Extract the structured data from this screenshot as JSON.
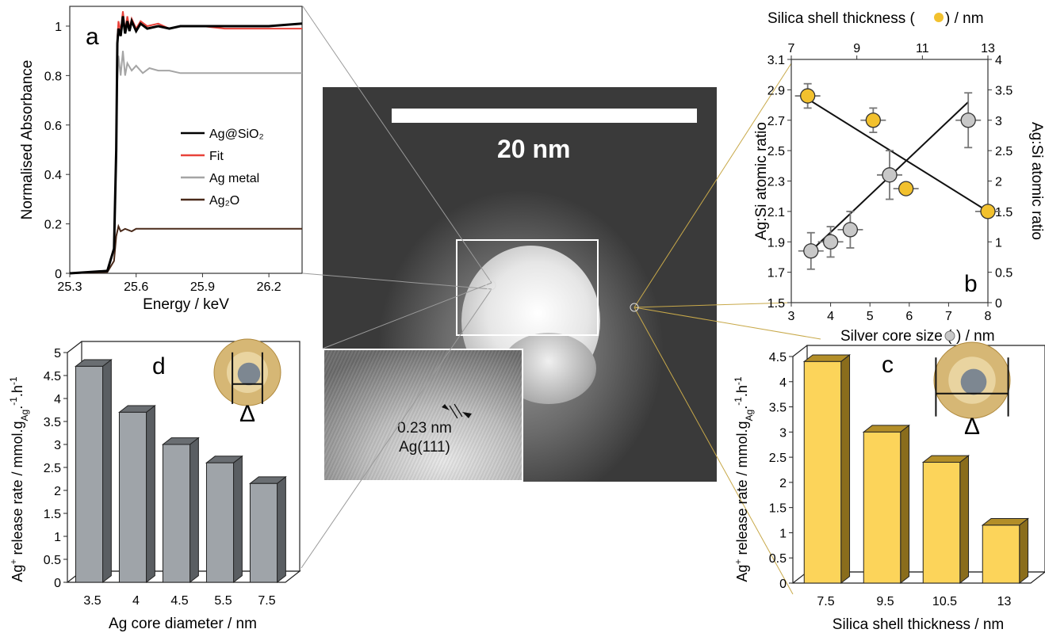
{
  "colors": {
    "ag_sio2": "#000000",
    "fit": "#e8423a",
    "ag_metal": "#a5a5a5",
    "ag2o": "#4a2a1a",
    "core_marker": "#c8c8c8",
    "shell_marker": "#f2c12e",
    "bar_gray": "#9fa4a9",
    "bar_yellow": "#fcd45a"
  },
  "micrograph": {
    "scale_label": "20 nm",
    "inset_spacing": "0.23 nm",
    "inset_plane": "Ag(111)"
  },
  "chart_data": [
    {
      "id": "a",
      "type": "line",
      "panel_label": "a",
      "xlabel": "Energy / keV",
      "ylabel": "Normalised Absorbance",
      "xlim": [
        25.3,
        26.35
      ],
      "ylim": [
        0,
        1.08
      ],
      "xticks": [
        "25.3",
        "25.6",
        "25.9",
        "26.2"
      ],
      "yticks": [
        "0",
        "0.2",
        "0.4",
        "0.6",
        "0.8",
        "1"
      ],
      "legend_position": "center-right",
      "series": [
        {
          "name": "Ag@SiO₂",
          "x": [
            25.3,
            25.47,
            25.5,
            25.51,
            25.515,
            25.52,
            25.53,
            25.54,
            25.55,
            25.56,
            25.57,
            25.58,
            25.6,
            25.62,
            25.65,
            25.7,
            25.75,
            25.8,
            25.9,
            26.0,
            26.1,
            26.2,
            26.35
          ],
          "y": [
            0,
            0.01,
            0.1,
            0.5,
            0.93,
            0.99,
            0.96,
            1.04,
            0.97,
            1.02,
            0.98,
            1.02,
            0.98,
            1.01,
            0.99,
            1.0,
            0.99,
            1.0,
            1.0,
            1.0,
            1.0,
            1.0,
            1.01
          ]
        },
        {
          "name": "Fit",
          "x": [
            25.3,
            25.47,
            25.5,
            25.51,
            25.515,
            25.52,
            25.53,
            25.54,
            25.55,
            25.56,
            25.57,
            25.58,
            25.6,
            25.62,
            25.65,
            25.7,
            25.75,
            25.8,
            25.9,
            26.0,
            26.1,
            26.2,
            26.35
          ],
          "y": [
            0,
            0.01,
            0.1,
            0.5,
            0.95,
            1.02,
            0.98,
            1.06,
            0.98,
            1.04,
            0.99,
            1.03,
            0.99,
            1.02,
            1.0,
            1.01,
            0.99,
            1.0,
            1.0,
            0.99,
            0.99,
            0.99,
            0.99
          ]
        },
        {
          "name": "Ag metal",
          "x": [
            25.3,
            25.47,
            25.5,
            25.51,
            25.515,
            25.52,
            25.53,
            25.54,
            25.55,
            25.56,
            25.58,
            25.6,
            25.63,
            25.66,
            25.7,
            25.75,
            25.8,
            25.9,
            26.0,
            26.1,
            26.2,
            26.35
          ],
          "y": [
            0,
            0.01,
            0.1,
            0.5,
            0.77,
            0.88,
            0.8,
            0.9,
            0.8,
            0.85,
            0.82,
            0.84,
            0.81,
            0.83,
            0.82,
            0.82,
            0.81,
            0.81,
            0.81,
            0.81,
            0.81,
            0.81
          ]
        },
        {
          "name": "Ag₂O",
          "x": [
            25.3,
            25.47,
            25.5,
            25.51,
            25.52,
            25.53,
            25.55,
            25.58,
            25.6,
            25.65,
            25.7,
            25.8,
            25.9,
            26.0,
            26.2,
            26.35
          ],
          "y": [
            0,
            0.005,
            0.05,
            0.15,
            0.19,
            0.17,
            0.18,
            0.17,
            0.18,
            0.18,
            0.18,
            0.18,
            0.18,
            0.18,
            0.18,
            0.18
          ]
        }
      ]
    },
    {
      "id": "b",
      "type": "scatter",
      "panel_label": "b",
      "xlabel": "Silver core size (",
      "xlabel_suffix": ") / nm",
      "x2label": "Silica shell thickness (",
      "x2label_suffix": ") / nm",
      "ylabel": "Ag:Si atomic ratio",
      "y2label": "Ag:Si atomic ratio",
      "xlim": [
        3,
        8
      ],
      "x2lim": [
        7,
        13
      ],
      "ylim": [
        1.5,
        3.1
      ],
      "y2lim": [
        0,
        4
      ],
      "xticks": [
        "3",
        "4",
        "5",
        "6",
        "7",
        "8"
      ],
      "x2ticks": [
        "7",
        "9",
        "11",
        "13"
      ],
      "yticks": [
        "1.5",
        "1.7",
        "1.9",
        "2.1",
        "2.3",
        "2.5",
        "2.7",
        "2.9",
        "3.1"
      ],
      "y2ticks": [
        "0",
        "0.5",
        "1",
        "1.5",
        "2",
        "2.5",
        "3",
        "3.5",
        "4"
      ],
      "series": [
        {
          "marker": "gray circle",
          "axis": "bottom-right",
          "x": [
            3.5,
            4.0,
            4.5,
            5.5,
            7.5
          ],
          "y": [
            0.85,
            1.0,
            1.2,
            2.1,
            3.0
          ],
          "err": [
            0.3,
            0.25,
            0.3,
            0.4,
            0.45
          ],
          "trend": [
            [
              3.5,
              0.85
            ],
            [
              7.5,
              3.3
            ]
          ]
        },
        {
          "marker": "yellow circle",
          "axis": "top-left",
          "x": [
            7.5,
            9.5,
            10.5,
            13
          ],
          "y": [
            2.86,
            2.7,
            2.25,
            2.1
          ],
          "err": [
            0.08,
            0.08,
            0.0,
            0.0
          ],
          "trend": [
            [
              7.5,
              2.84
            ],
            [
              13,
              2.1
            ]
          ]
        }
      ]
    },
    {
      "id": "d",
      "type": "bar",
      "panel_label": "d",
      "xlabel": "Ag core diameter / nm",
      "ylabel_parts": [
        "Ag",
        "+",
        " release rate / mmol.g",
        "Ag",
        ".",
        "-1",
        ".h",
        "-1"
      ],
      "categories": [
        "3.5",
        "4",
        "4.5",
        "5.5",
        "7.5"
      ],
      "values": [
        4.7,
        3.7,
        3.0,
        2.6,
        2.15
      ],
      "ylim": [
        0,
        5
      ],
      "yticks": [
        "0",
        "0.5",
        "1",
        "1.5",
        "2",
        "2.5",
        "3",
        "3.5",
        "4",
        "4.5",
        "5"
      ],
      "annotation": "Δ"
    },
    {
      "id": "c",
      "type": "bar",
      "panel_label": "c",
      "xlabel": "Silica shell thickness / nm",
      "ylabel_parts": [
        "Ag",
        "+",
        " release rate / mmol.g",
        "Ag",
        ".",
        "-1",
        ".h",
        "-1"
      ],
      "categories": [
        "7.5",
        "9.5",
        "10.5",
        "13"
      ],
      "values": [
        4.4,
        3.0,
        2.4,
        1.15
      ],
      "ylim": [
        0,
        4.5
      ],
      "yticks": [
        "0",
        "0.5",
        "1",
        "1.5",
        "2",
        "2.5",
        "3",
        "3.5",
        "4",
        "4.5"
      ],
      "annotation": "Δ"
    }
  ]
}
